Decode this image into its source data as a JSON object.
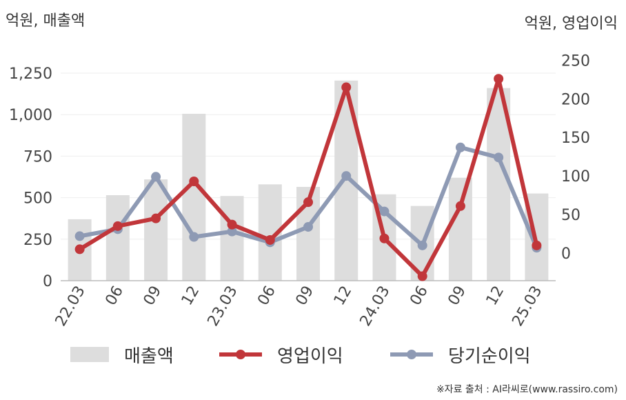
{
  "unit_left": "억원, 매출액",
  "unit_right": "억원, 영업이익",
  "source": "※자료 출처 : AI라씨로(www.rassiro.com)",
  "colors": {
    "bar": "#dddddd",
    "operating_profit": "#c1363a",
    "net_income": "#8e9ab4",
    "axis": "#bbbbbb",
    "grid": "#eeeeee"
  },
  "legend": {
    "revenue": "매출액",
    "operating_profit": "영업이익",
    "net_income": "당기순이익"
  },
  "chart_data": {
    "type": "bar",
    "categories": [
      "22.03",
      "06",
      "09",
      "12",
      "23.03",
      "06",
      "09",
      "12",
      "24.03",
      "06",
      "09",
      "12",
      "25.03"
    ],
    "left_axis": {
      "ylim": [
        0,
        1250
      ],
      "ticks": [
        "0",
        "250",
        "500",
        "750",
        "1,000",
        "1,250"
      ],
      "tick_values": [
        0,
        250,
        500,
        750,
        1000,
        1250
      ]
    },
    "right_axis": {
      "ylim": [
        0,
        250
      ],
      "ticks": [
        "0",
        "50",
        "100",
        "150",
        "200",
        "250"
      ],
      "tick_values": [
        0,
        50,
        100,
        150,
        200,
        250
      ]
    },
    "series": [
      {
        "name": "매출액",
        "type": "bar",
        "axis": "left",
        "values": [
          370,
          515,
          610,
          1005,
          510,
          580,
          565,
          1205,
          520,
          450,
          620,
          1160,
          525
        ]
      },
      {
        "name": "영업이익",
        "type": "line",
        "axis": "right",
        "values": [
          5,
          35,
          45,
          93,
          37,
          17,
          66,
          215,
          19,
          -30,
          61,
          226,
          10
        ]
      },
      {
        "name": "당기순이익",
        "type": "line",
        "axis": "right",
        "values": [
          22,
          31,
          99,
          21,
          28,
          14,
          34,
          100,
          54,
          10,
          137,
          124,
          7
        ]
      }
    ]
  }
}
